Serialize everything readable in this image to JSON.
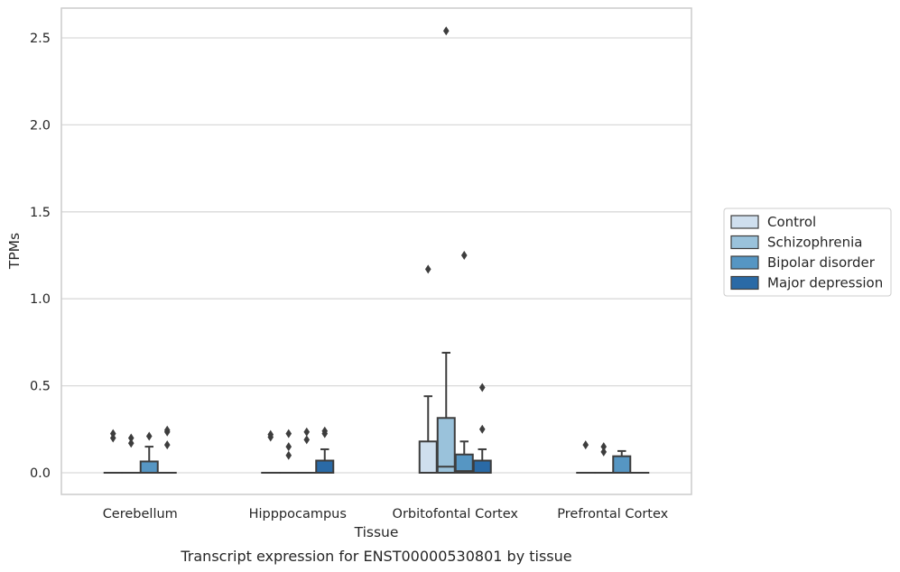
{
  "chart_data": {
    "type": "box",
    "xlabel": "Tissue",
    "ylabel": "TPMs",
    "caption": "Transcript expression for ENST00000530801 by tissue",
    "ylim": [
      -0.12,
      2.67
    ],
    "yticks": [
      "0.0",
      "0.5",
      "1.0",
      "1.5",
      "2.0",
      "2.5"
    ],
    "grid": "horizontal",
    "legend_position": "right",
    "categories": [
      "Cerebellum",
      "Hipppocampus",
      "Orbitofontal Cortex",
      "Prefrontal Cortex"
    ],
    "series": [
      {
        "name": "Control",
        "color": "#cfdfee",
        "boxes": [
          {
            "q1": 0,
            "median": 0,
            "q3": 0,
            "whislo": 0,
            "whishi": 0,
            "fliers": [
              0.2,
              0.225
            ]
          },
          {
            "q1": 0,
            "median": 0,
            "q3": 0,
            "whislo": 0,
            "whishi": 0,
            "fliers": [
              0.205,
              0.22
            ]
          },
          {
            "q1": 0,
            "median": 0,
            "q3": 0.18,
            "whislo": 0,
            "whishi": 0.44,
            "fliers": [
              1.17
            ]
          },
          {
            "q1": 0,
            "median": 0,
            "q3": 0,
            "whislo": 0,
            "whishi": 0,
            "fliers": [
              0.16
            ]
          }
        ]
      },
      {
        "name": "Schizophrenia",
        "color": "#9ac2db",
        "boxes": [
          {
            "q1": 0,
            "median": 0,
            "q3": 0,
            "whislo": 0,
            "whishi": 0,
            "fliers": [
              0.17,
              0.2
            ]
          },
          {
            "q1": 0,
            "median": 0,
            "q3": 0,
            "whislo": 0,
            "whishi": 0,
            "fliers": [
              0.1,
              0.15,
              0.225
            ]
          },
          {
            "q1": 0,
            "median": 0.035,
            "q3": 0.315,
            "whislo": 0,
            "whishi": 0.69,
            "fliers": [
              2.54
            ]
          },
          {
            "q1": 0,
            "median": 0,
            "q3": 0,
            "whislo": 0,
            "whishi": 0,
            "fliers": [
              0.12,
              0.15
            ]
          }
        ]
      },
      {
        "name": "Bipolar disorder",
        "color": "#5696c3",
        "boxes": [
          {
            "q1": 0,
            "median": 0,
            "q3": 0.065,
            "whislo": 0,
            "whishi": 0.15,
            "fliers": [
              0.21
            ]
          },
          {
            "q1": 0,
            "median": 0,
            "q3": 0,
            "whislo": 0,
            "whishi": 0,
            "fliers": [
              0.19,
              0.235
            ]
          },
          {
            "q1": 0,
            "median": 0.01,
            "q3": 0.105,
            "whislo": 0,
            "whishi": 0.18,
            "fliers": [
              1.25
            ]
          },
          {
            "q1": 0,
            "median": 0,
            "q3": 0.095,
            "whislo": 0,
            "whishi": 0.125,
            "fliers": []
          }
        ]
      },
      {
        "name": "Major depression",
        "color": "#2a6aa6",
        "boxes": [
          {
            "q1": 0,
            "median": 0,
            "q3": 0,
            "whislo": 0,
            "whishi": 0,
            "fliers": [
              0.16,
              0.235,
              0.245
            ]
          },
          {
            "q1": 0,
            "median": 0,
            "q3": 0.07,
            "whislo": 0,
            "whishi": 0.135,
            "fliers": [
              0.225,
              0.24
            ]
          },
          {
            "q1": 0,
            "median": 0,
            "q3": 0.07,
            "whislo": 0,
            "whishi": 0.135,
            "fliers": [
              0.25,
              0.49
            ]
          },
          {
            "q1": 0,
            "median": 0,
            "q3": 0,
            "whislo": 0,
            "whishi": 0,
            "fliers": []
          }
        ]
      }
    ]
  }
}
